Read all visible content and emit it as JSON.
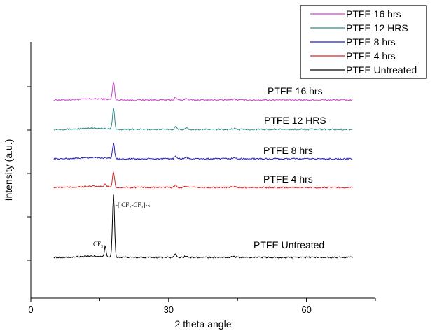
{
  "chart_data": {
    "type": "line",
    "title": "",
    "xlabel": "2 theta angle",
    "ylabel": "Intensity (a.u.)",
    "xlim": [
      0,
      75
    ],
    "xticks": [
      0,
      30,
      60
    ],
    "x_range": [
      5,
      70
    ],
    "peaks_2theta": [
      16.2,
      18.0,
      31.5,
      33.8,
      44.2
    ],
    "grid": false,
    "legend_position": "top-right",
    "annotations": [
      {
        "text": "-[ CF₂-CF₂]-ₙ",
        "x": 18.0
      },
      {
        "text": "CF₃",
        "x": 16.2
      }
    ],
    "series": [
      {
        "name": "PTFE 16 hrs",
        "color": "#cc44cc",
        "baseline": 5,
        "main_peak": 0.65,
        "side_peak": 0.0
      },
      {
        "name": "PTFE 12 HRS",
        "color": "#2e8b8b",
        "baseline": 4,
        "main_peak": 0.75,
        "side_peak": 0.0
      },
      {
        "name": "PTFE 8 hrs",
        "color": "#2222bb",
        "baseline": 3,
        "main_peak": 0.55,
        "side_peak": 0.0
      },
      {
        "name": "PTFE 4 hrs",
        "color": "#dd2222",
        "baseline": 2,
        "main_peak": 0.55,
        "side_peak": 0.1
      },
      {
        "name": "PTFE Untreated",
        "color": "#000000",
        "baseline": 0,
        "main_peak": 2.25,
        "side_peak": 0.4
      }
    ]
  }
}
